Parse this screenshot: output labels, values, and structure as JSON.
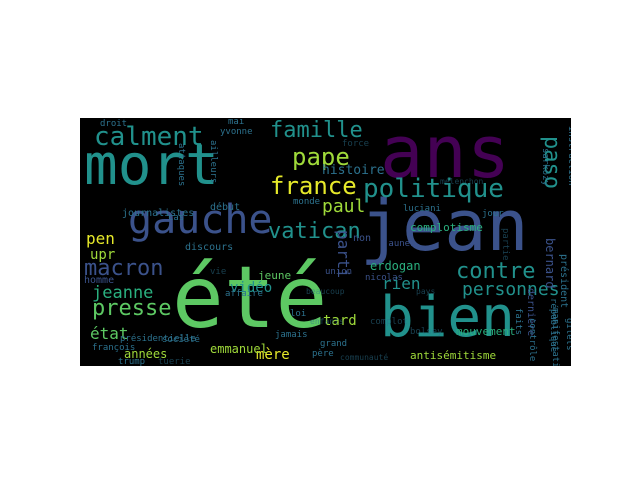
{
  "palette": {
    "green": "#5dc863",
    "teal": "#21918c",
    "blue": "#3b528b",
    "purple": "#440154",
    "yellow": "#e6e92a",
    "lime": "#9fda3a",
    "aqua": "#2ab07f",
    "steel": "#2c728e"
  },
  "words": [
    {
      "text": "ans",
      "color": "purple"
    },
    {
      "text": "été",
      "color": "green"
    },
    {
      "text": "jean",
      "color": "blue"
    },
    {
      "text": "mort",
      "color": "teal"
    },
    {
      "text": "bien",
      "color": "teal"
    },
    {
      "text": "gauche",
      "color": "blue"
    },
    {
      "text": "politique",
      "color": "teal"
    },
    {
      "text": "calment",
      "color": "teal"
    },
    {
      "text": "france",
      "color": "yellow"
    },
    {
      "text": "famille",
      "color": "teal"
    },
    {
      "text": "macron",
      "color": "blue"
    },
    {
      "text": "contre",
      "color": "teal"
    },
    {
      "text": "vatican",
      "color": "teal"
    },
    {
      "text": "pape",
      "color": "lime"
    },
    {
      "text": "presse",
      "color": "green"
    },
    {
      "text": "jeanne",
      "color": "aqua"
    },
    {
      "text": "paso",
      "color": "teal"
    },
    {
      "text": "personnes",
      "color": "teal"
    },
    {
      "text": "paul",
      "color": "lime"
    },
    {
      "text": "pen",
      "color": "yellow"
    },
    {
      "text": "état",
      "color": "green"
    },
    {
      "text": "parti",
      "color": "blue"
    },
    {
      "text": "rien",
      "color": "teal"
    },
    {
      "text": "mère",
      "color": "yellow"
    },
    {
      "text": "tard",
      "color": "lime"
    },
    {
      "text": "upr",
      "color": "lime"
    },
    {
      "text": "vidéo",
      "color": "teal"
    },
    {
      "text": "histoire",
      "color": "steel"
    },
    {
      "text": "années",
      "color": "lime"
    },
    {
      "text": "emmanuel",
      "color": "lime"
    },
    {
      "text": "complotisme",
      "color": "aqua"
    },
    {
      "text": "erdogan",
      "color": "aqua"
    },
    {
      "text": "antisémitisme",
      "color": "lime"
    },
    {
      "text": "mouvement",
      "color": "aqua"
    },
    {
      "text": "bernard",
      "color": "blue"
    },
    {
      "text": "début",
      "color": "steel"
    },
    {
      "text": "homme",
      "color": "blue"
    },
    {
      "text": "jeune",
      "color": "green"
    },
    {
      "text": "président",
      "color": "steel"
    },
    {
      "text": "non",
      "color": "blue"
    },
    {
      "text": "discours",
      "color": "steel"
    },
    {
      "text": "journalistes",
      "color": "steel"
    },
    {
      "text": "dernière",
      "color": "blue"
    },
    {
      "text": "république",
      "color": "steel"
    },
    {
      "text": "nicolas",
      "color": "blue"
    },
    {
      "text": "sarkozy",
      "color": "steel"
    },
    {
      "text": "instruction",
      "color": "steel"
    },
    {
      "text": "présidentielle",
      "color": "steel"
    },
    {
      "text": "luciani",
      "color": "steel"
    },
    {
      "text": "affaire",
      "color": "steel"
    },
    {
      "text": "manifestation",
      "color": "steel"
    },
    {
      "text": "monde",
      "color": "steel"
    },
    {
      "text": "union",
      "color": "blue"
    },
    {
      "text": "droit",
      "color": "steel"
    },
    {
      "text": "yvonne",
      "color": "steel"
    },
    {
      "text": "trump",
      "color": "steel"
    },
    {
      "text": "société",
      "color": "steel"
    },
    {
      "text": "françois",
      "color": "steel"
    },
    {
      "text": "jamais",
      "color": "steel"
    },
    {
      "text": "loi",
      "color": "steel"
    },
    {
      "text": "grand",
      "color": "steel"
    },
    {
      "text": "père",
      "color": "steel"
    },
    {
      "text": "faits",
      "color": "steel"
    },
    {
      "text": "contrôle",
      "color": "steel"
    },
    {
      "text": "gilets",
      "color": "steel"
    },
    {
      "text": "jaunes",
      "color": "blue"
    },
    {
      "text": "jour",
      "color": "steel"
    },
    {
      "text": "mai",
      "color": "steel"
    },
    {
      "text": "cas",
      "color": "steel"
    },
    {
      "text": "attaques",
      "color": "steel"
    },
    {
      "text": "ailleurs",
      "color": "steel"
    },
    {
      "text": "force",
      "color": "steel"
    },
    {
      "text": "tuerie",
      "color": "steel"
    },
    {
      "text": "mélenchon",
      "color": "steel"
    },
    {
      "text": "bolsey",
      "color": "steel"
    },
    {
      "text": "complot",
      "color": "steel"
    },
    {
      "text": "pays",
      "color": "steel"
    },
    {
      "text": "partie",
      "color": "steel"
    },
    {
      "text": "beaucoup",
      "color": "steel"
    },
    {
      "text": "communauté",
      "color": "steel"
    },
    {
      "text": "vie",
      "color": "steel"
    },
    {
      "text": "enfants",
      "color": "steel"
    }
  ]
}
